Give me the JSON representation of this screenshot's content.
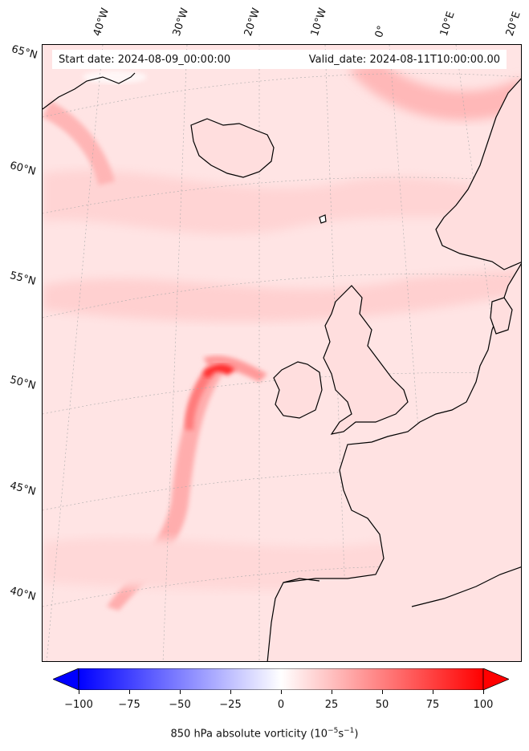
{
  "header": {
    "start_date": "Start date: 2024-08-09_00:00:00",
    "valid_date": "Valid_date: 2024-08-11T10:00:00.00"
  },
  "longitude_labels": [
    "40°W",
    "30°W",
    "20°W",
    "10°W",
    "0°",
    "10°E",
    "20°E"
  ],
  "latitude_labels": [
    "65°N",
    "60°N",
    "55°N",
    "50°N",
    "45°N",
    "40°N"
  ],
  "colorbar": {
    "label": "850 hPa absolute vorticity (10",
    "label_exp": "−5",
    "label_unit": "s",
    "label_exp2": "−1",
    "label_close": ")",
    "ticks": [
      "−100",
      "−75",
      "−50",
      "−25",
      "0",
      "25",
      "50",
      "75",
      "100"
    ],
    "min": -100,
    "max": 100,
    "extend": "both",
    "colors": {
      "low": "#0000ff",
      "mid": "#ffffff",
      "high": "#ff0000"
    }
  },
  "map": {
    "projection": "lambert-conformal",
    "field": "850 hPa absolute vorticity",
    "background_color": "#ffe6e6",
    "coastline_color": "#000000"
  }
}
